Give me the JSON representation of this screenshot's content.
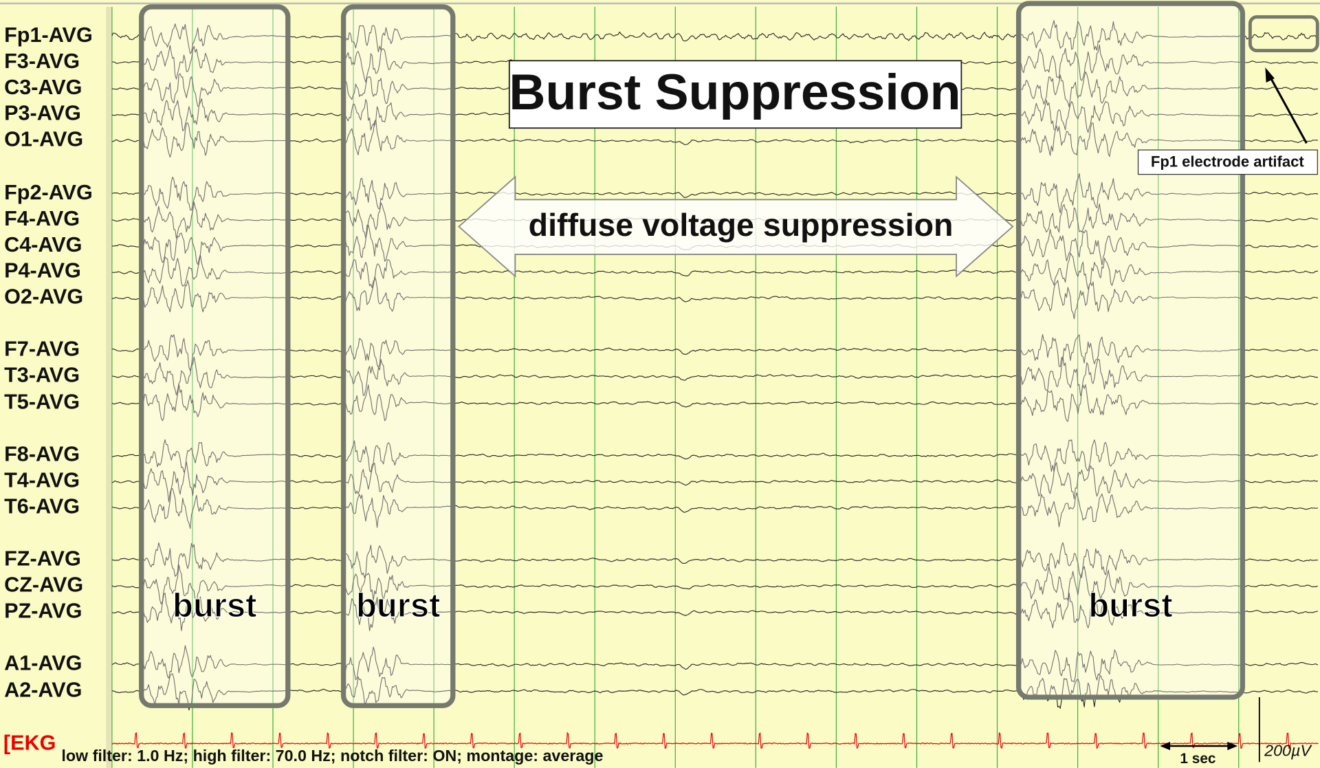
{
  "title": "Burst Suppression",
  "channels": [
    "Fp1-AVG",
    "F3-AVG",
    "C3-AVG",
    "P3-AVG",
    "O1-AVG",
    "Fp2-AVG",
    "F4-AVG",
    "C4-AVG",
    "P4-AVG",
    "O2-AVG",
    "F7-AVG",
    "T3-AVG",
    "T5-AVG",
    "F8-AVG",
    "T4-AVG",
    "T6-AVG",
    "FZ-AVG",
    "CZ-AVG",
    "PZ-AVG",
    "A1-AVG",
    "A2-AVG"
  ],
  "annotations": {
    "suppression": "diffuse voltage suppression",
    "bursts": [
      "burst",
      "burst",
      "burst"
    ],
    "artifact": "Fp1 electrode artifact"
  },
  "ekg": {
    "label": "[EKG",
    "filter_info": "low filter: 1.0 Hz; high filter: 70.0 Hz; notch filter: ON; montage: average"
  },
  "scale": {
    "time": "1 sec",
    "voltage": "200µV"
  }
}
